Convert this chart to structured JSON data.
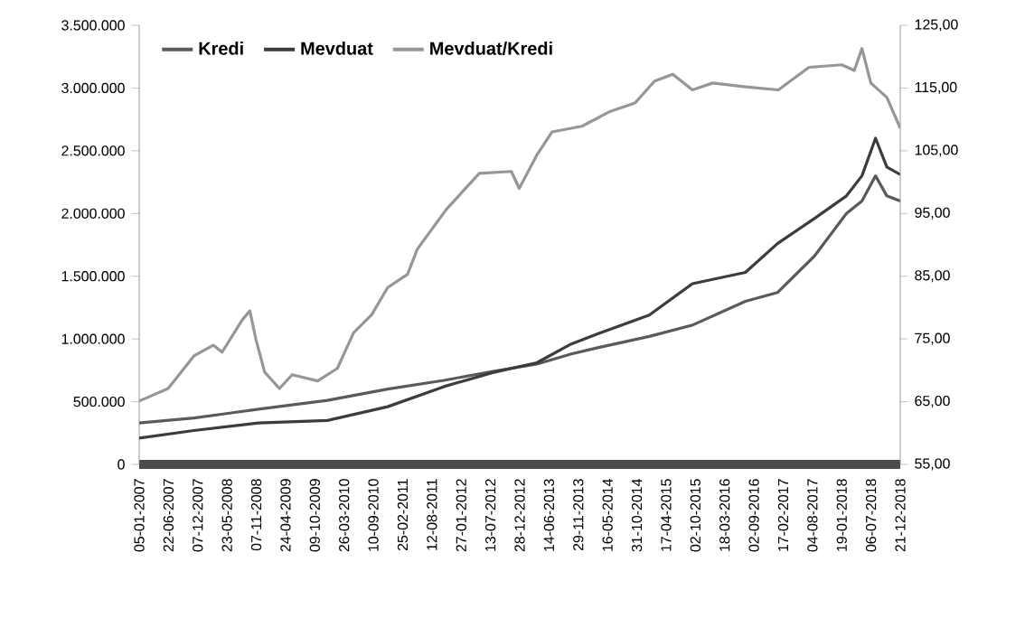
{
  "chart_data": {
    "type": "line",
    "x": [
      "2007-01-05",
      "2007-11-15",
      "2008-11-20",
      "2009-12-20",
      "2010-12-01",
      "2011-10-20",
      "2012-07-20",
      "2013-04-05",
      "2013-10-20",
      "2014-03-20",
      "2015-01-10",
      "2015-09-15",
      "2016-07-15",
      "2017-01-15",
      "2017-08-15",
      "2018-02-15",
      "2018-05-15",
      "2018-08-01",
      "2018-10-05",
      "2018-12-21"
    ],
    "series": [
      {
        "name": "Kredi",
        "color": "#5a5a5a",
        "values": [
          330000,
          370000,
          440000,
          510000,
          600000,
          670000,
          740000,
          800000,
          880000,
          930000,
          1020000,
          1110000,
          1300000,
          1370000,
          1660000,
          2000000,
          2100000,
          2300000,
          2140000,
          2100000
        ]
      },
      {
        "name": "Mevduat",
        "color": "#3c3c3c",
        "values": [
          210000,
          270000,
          330000,
          350000,
          460000,
          620000,
          730000,
          810000,
          960000,
          1040000,
          1190000,
          1440000,
          1530000,
          1760000,
          1960000,
          2140000,
          2300000,
          2600000,
          2370000,
          2310000
        ]
      },
      {
        "name": "Mevduat/Kredi",
        "color": "#969696",
        "axis": "y2",
        "x": [
          "2007-01-05",
          "2007-06-20",
          "2007-11-15",
          "2008-03-05",
          "2008-04-25",
          "2008-08-20",
          "2008-10-01",
          "2008-11-05",
          "2008-12-25",
          "2009-03-20",
          "2009-06-01",
          "2009-10-25",
          "2010-02-15",
          "2010-05-20",
          "2010-09-01",
          "2010-12-01",
          "2011-03-25",
          "2011-05-20",
          "2011-11-01",
          "2012-05-10",
          "2012-11-10",
          "2012-12-25",
          "2013-04-05",
          "2013-07-01",
          "2013-12-20",
          "2014-05-25",
          "2014-10-20",
          "2015-02-10",
          "2015-05-25",
          "2015-09-15",
          "2016-01-10",
          "2016-07-15",
          "2017-01-20",
          "2017-07-15",
          "2018-01-20",
          "2018-04-01",
          "2018-05-15",
          "2018-07-05",
          "2018-10-05",
          "2018-12-21"
        ],
        "values": [
          65.1,
          67.1,
          72.3,
          74.0,
          72.9,
          78.1,
          79.5,
          74.9,
          69.7,
          67.1,
          69.3,
          68.3,
          70.3,
          76.0,
          78.9,
          83.2,
          85.3,
          89.3,
          95.6,
          101.4,
          101.7,
          99.0,
          104.3,
          108.0,
          108.9,
          111.2,
          112.6,
          116.1,
          117.2,
          114.7,
          115.8,
          115.2,
          114.7,
          118.3,
          118.7,
          117.8,
          121.3,
          115.8,
          113.5,
          108.6
        ]
      }
    ],
    "xlim": [
      "2007-01-05",
      "2018-12-21"
    ],
    "xticks": [
      {
        "value": "2007-01-05",
        "label": "05-01-2007"
      },
      {
        "value": "2007-06-22",
        "label": "22-06-2007"
      },
      {
        "value": "2007-12-07",
        "label": "07-12-2007"
      },
      {
        "value": "2008-05-23",
        "label": "23-05-2008"
      },
      {
        "value": "2008-11-07",
        "label": "07-11-2008"
      },
      {
        "value": "2009-04-24",
        "label": "24-04-2009"
      },
      {
        "value": "2009-10-09",
        "label": "09-10-2009"
      },
      {
        "value": "2010-03-26",
        "label": "26-03-2010"
      },
      {
        "value": "2010-09-10",
        "label": "10-09-2010"
      },
      {
        "value": "2011-02-25",
        "label": "25-02-2011"
      },
      {
        "value": "2011-08-12",
        "label": "12-08-2011"
      },
      {
        "value": "2012-01-27",
        "label": "27-01-2012"
      },
      {
        "value": "2012-07-13",
        "label": "13-07-2012"
      },
      {
        "value": "2012-12-28",
        "label": "28-12-2012"
      },
      {
        "value": "2013-06-14",
        "label": "14-06-2013"
      },
      {
        "value": "2013-11-29",
        "label": "29-11-2013"
      },
      {
        "value": "2014-05-16",
        "label": "16-05-2014"
      },
      {
        "value": "2014-10-31",
        "label": "31-10-2014"
      },
      {
        "value": "2015-04-17",
        "label": "17-04-2015"
      },
      {
        "value": "2015-10-02",
        "label": "02-10-2015"
      },
      {
        "value": "2016-03-18",
        "label": "18-03-2016"
      },
      {
        "value": "2016-09-02",
        "label": "02-09-2016"
      },
      {
        "value": "2017-02-17",
        "label": "17-02-2017"
      },
      {
        "value": "2017-08-04",
        "label": "04-08-2017"
      },
      {
        "value": "2018-01-19",
        "label": "19-01-2018"
      },
      {
        "value": "2018-07-06",
        "label": "06-07-2018"
      },
      {
        "value": "2018-12-21",
        "label": "21-12-2018"
      }
    ],
    "ylim": [
      0,
      3500000
    ],
    "yticks": [
      0,
      {
        "value": 500000,
        "label": "500.000"
      },
      {
        "value": 1000000,
        "label": "1.000.000"
      },
      {
        "value": 1500000,
        "label": "1.500.000"
      },
      {
        "value": 2000000,
        "label": "2.000.000"
      },
      {
        "value": 2500000,
        "label": "2.500.000"
      },
      {
        "value": 3000000,
        "label": "3.000.000"
      },
      {
        "value": 3500000,
        "label": "3.500.000"
      }
    ],
    "y2lim": [
      55,
      125
    ],
    "y2ticks": [
      {
        "value": 55,
        "label": "55,00"
      },
      {
        "value": 65,
        "label": "65,00"
      },
      {
        "value": 75,
        "label": "75,00"
      },
      {
        "value": 85,
        "label": "85,00"
      },
      {
        "value": 95,
        "label": "95,00"
      },
      {
        "value": 105,
        "label": "105,00"
      },
      {
        "value": 115,
        "label": "115,00"
      },
      {
        "value": 125,
        "label": "125,00"
      }
    ],
    "legend": "top left",
    "grid": false,
    "marker": "none",
    "line_style": "solid"
  }
}
